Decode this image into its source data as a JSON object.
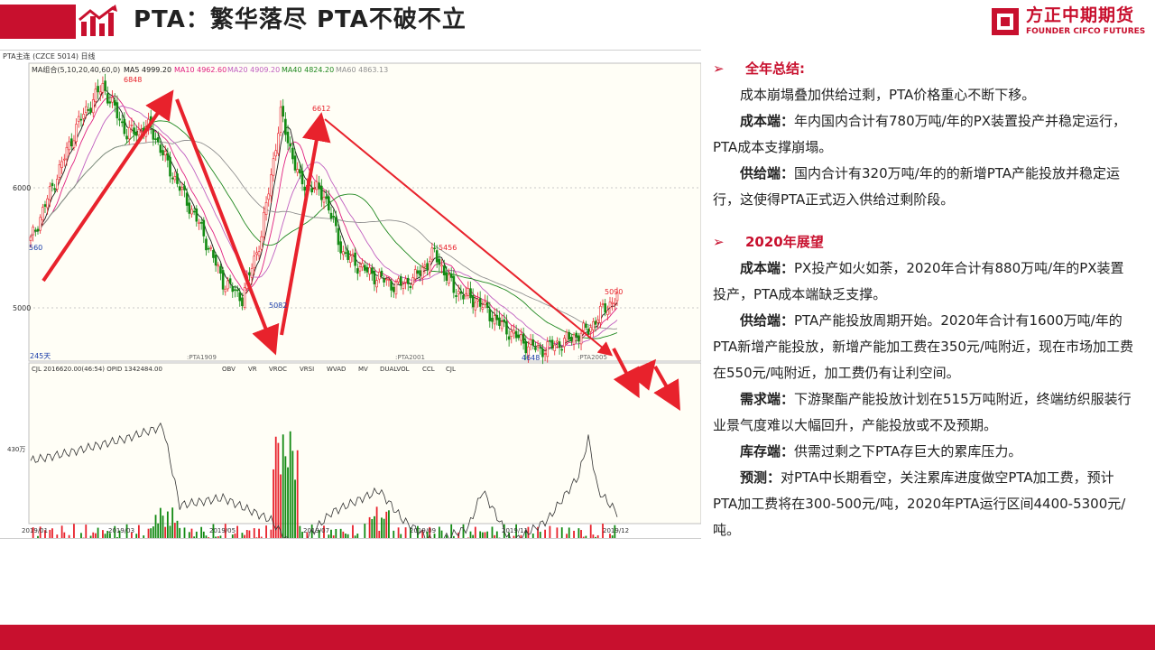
{
  "header": {
    "title": "PTA：繁华落尽   PTA不破不立",
    "brand_cn": "方正中期期货",
    "brand_en": "FOUNDER CIFCO FUTURES"
  },
  "chart_data": {
    "type": "candlestick",
    "title": "PTA主连 (CZCE 5014)  日线",
    "ma_legend": {
      "label": "MA组合(5,10,20,40,60,0)",
      "ma5": "MA5 4999.20",
      "ma10": "MA10 4962.60",
      "ma20": "MA20 4909.20",
      "ma40": "MA40 4824.20",
      "ma60": "MA60 4863.13"
    },
    "y_ticks": [
      "6000",
      "5000"
    ],
    "ylim": [
      4600,
      6900
    ],
    "price_labels": {
      "left": "560",
      "p1": "6848",
      "p2": "5082",
      "p3": "6612",
      "p4": "5456",
      "p5": "4648",
      "p6": "5090"
    },
    "contract_labels": [
      ":PTA1909",
      ":PTA2001",
      ":PTA2005"
    ],
    "days_label": "245天",
    "anchor_points": [
      {
        "i": 0,
        "v": 5560
      },
      {
        "i": 20,
        "v": 6550
      },
      {
        "i": 30,
        "v": 6848
      },
      {
        "i": 40,
        "v": 6450
      },
      {
        "i": 50,
        "v": 6500
      },
      {
        "i": 58,
        "v": 6150
      },
      {
        "i": 70,
        "v": 5700
      },
      {
        "i": 80,
        "v": 5220
      },
      {
        "i": 88,
        "v": 5082
      },
      {
        "i": 96,
        "v": 5600
      },
      {
        "i": 104,
        "v": 6612
      },
      {
        "i": 112,
        "v": 6050
      },
      {
        "i": 122,
        "v": 5950
      },
      {
        "i": 130,
        "v": 5450
      },
      {
        "i": 140,
        "v": 5300
      },
      {
        "i": 152,
        "v": 5180
      },
      {
        "i": 160,
        "v": 5250
      },
      {
        "i": 168,
        "v": 5456
      },
      {
        "i": 176,
        "v": 5150
      },
      {
        "i": 186,
        "v": 5050
      },
      {
        "i": 196,
        "v": 4850
      },
      {
        "i": 206,
        "v": 4700
      },
      {
        "i": 212,
        "v": 4648
      },
      {
        "i": 222,
        "v": 4720
      },
      {
        "i": 232,
        "v": 4820
      },
      {
        "i": 238,
        "v": 4980
      },
      {
        "i": 244,
        "v": 5090
      }
    ],
    "volume_panel": {
      "legend": "CJL   2016620.00(46:54)   OPID 1342484.00",
      "indicators": [
        "OBV",
        "VR",
        "VROC",
        "VRSI",
        "WVAD",
        "MV",
        "DUALVOL",
        "CCL",
        "CJL"
      ],
      "y_label": "430万",
      "open_interest_anchors": [
        {
          "i": 0,
          "v": 0.75
        },
        {
          "i": 15,
          "v": 0.8
        },
        {
          "i": 40,
          "v": 0.9
        },
        {
          "i": 55,
          "v": 0.98
        },
        {
          "i": 62,
          "v": 0.45
        },
        {
          "i": 80,
          "v": 0.5
        },
        {
          "i": 100,
          "v": 0.35
        },
        {
          "i": 110,
          "v": 0.15
        },
        {
          "i": 125,
          "v": 0.4
        },
        {
          "i": 145,
          "v": 0.55
        },
        {
          "i": 155,
          "v": 0.35
        },
        {
          "i": 168,
          "v": 0.2
        },
        {
          "i": 182,
          "v": 0.3
        },
        {
          "i": 188,
          "v": 0.55
        },
        {
          "i": 200,
          "v": 0.2
        },
        {
          "i": 215,
          "v": 0.35
        },
        {
          "i": 228,
          "v": 0.65
        },
        {
          "i": 232,
          "v": 0.9
        },
        {
          "i": 236,
          "v": 0.55
        },
        {
          "i": 244,
          "v": 0.4
        }
      ]
    },
    "x_ticks": [
      "2019/01",
      "2019/03",
      "2019/05",
      "2019/07",
      "2019/09",
      "2019/11",
      "2019/12"
    ]
  },
  "text_panel": {
    "sec1_title": "全年总结:",
    "sec1_p1": "成本崩塌叠加供给过剩，PTA价格重心不断下移。",
    "sec1_cost_label": "成本端：",
    "sec1_cost": "年内国内合计有780万吨/年的PX装置投产并稳定运行，PTA成本支撑崩塌。",
    "sec1_supply_label": "供给端：",
    "sec1_supply": "国内合计有320万吨/年的的新增PTA产能投放并稳定运行，这使得PTA正式迈入供给过剩阶段。",
    "sec2_title": "2020年展望",
    "sec2_cost_label": "成本端：",
    "sec2_cost": "PX投产如火如荼，2020年合计有880万吨/年的PX装置投产，PTA成本端缺乏支撑。",
    "sec2_supply_label": "供给端：",
    "sec2_supply": "PTA产能投放周期开始。2020年合计有1600万吨/年的PTA新增产能投放，新增产能加工费在350元/吨附近，现在市场加工费在550元/吨附近，加工费仍有让利空间。",
    "sec2_demand_label": "需求端：",
    "sec2_demand": "下游聚酯产能投放计划在515万吨附近，终端纺织服装行业景气度难以大幅回升，产能投放或不及预期。",
    "sec2_stock_label": "库存端：",
    "sec2_stock": "供需过剩之下PTA存巨大的累库压力。",
    "sec2_forecast_label": "预测：",
    "sec2_forecast": "对PTA中长期看空，关注累库进度做空PTA加工费，预计PTA加工费将在300-500元/吨，2020年PTA运行区间4400-5300元/吨。"
  },
  "colors": {
    "brand_red": "#c8102e",
    "up": "#e8222c",
    "down": "#128a12",
    "ma5": "#1a1a1a",
    "ma10": "#e02080",
    "ma20": "#c060c0",
    "ma40": "#208820",
    "ma60": "#909090",
    "trend_arrow": "#e8222c"
  }
}
